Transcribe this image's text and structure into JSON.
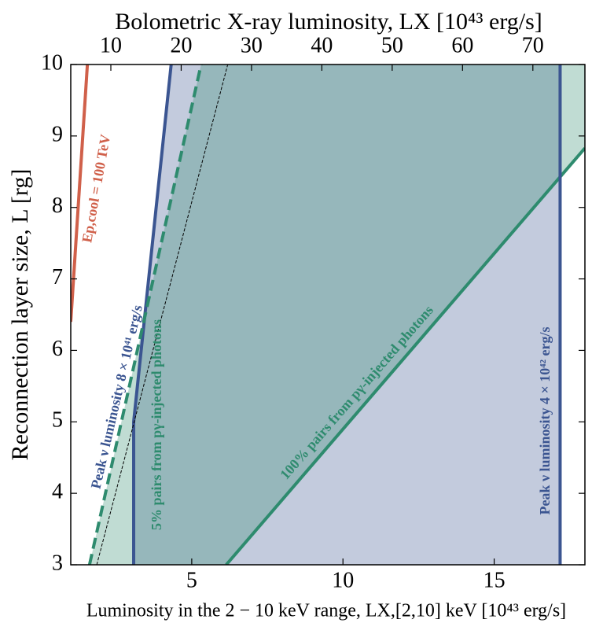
{
  "chart_data": {
    "type": "line",
    "x_label": "Luminosity in the 2 − 10 keV range, LX,[2,10] keV [10⁴³ erg/s]",
    "x2_label": "Bolometric X-ray luminosity, LX [10⁴³ erg/s]",
    "y_label": "Reconnection layer size, L [rg]",
    "xlim": [
      1,
      18
    ],
    "xticks": [
      5,
      10,
      15
    ],
    "x2lim": [
      4.3,
      77.4
    ],
    "x2ticks": [
      10,
      20,
      30,
      40,
      50,
      60,
      70
    ],
    "ylim": [
      3,
      10
    ],
    "yticks": [
      3,
      4,
      5,
      6,
      7,
      8,
      9,
      10
    ],
    "series": [
      {
        "name": "Ep,cool = 100 TeV",
        "color": "#d0604a",
        "style": "solid",
        "x": [
          1,
          1.55
        ],
        "values": [
          6.4,
          10
        ]
      },
      {
        "name": "Peak ν luminosity 8 × 10⁴¹ erg/s",
        "color": "#3b5591",
        "style": "solid",
        "x": [
          3.08,
          3.08,
          4.32
        ],
        "values": [
          3,
          5,
          10
        ]
      },
      {
        "name": "5% pairs from pγ-injected photons",
        "color": "#2e8b6e",
        "style": "dashed",
        "x": [
          1.62,
          5.31
        ],
        "values": [
          3,
          10
        ]
      },
      {
        "color": "#000000",
        "style": "thin-dashed",
        "x": [
          1.86,
          6.19
        ],
        "values": [
          3,
          10
        ]
      },
      {
        "name": "100% pairs from pγ-injected photons",
        "color": "#2e8b6e",
        "style": "solid",
        "x": [
          6.14,
          18
        ],
        "values": [
          3,
          8.83
        ]
      },
      {
        "name": "Peak ν luminosity 4 × 10⁴² erg/s",
        "color": "#3b5591",
        "style": "solid",
        "x": [
          17.18,
          17.18
        ],
        "values": [
          3,
          10
        ]
      }
    ]
  }
}
